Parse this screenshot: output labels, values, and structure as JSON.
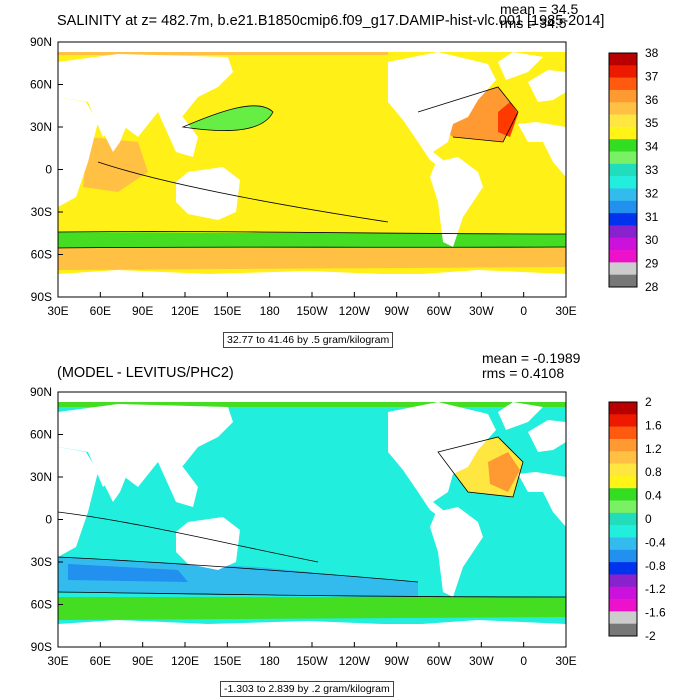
{
  "panels": [
    {
      "title": "SALINITY at z= 482.7m, b.e21.B1850cmip6.f09_g17.DAMIP-hist-vlc.001 [1985-2014]",
      "mean_label": "mean = 34.5",
      "rms_label": "rms = 34.5",
      "range_label": "32.77 to 41.46 by .5 gram/kilogram",
      "colorbar": {
        "labels": [
          "38",
          "37",
          "36",
          "35",
          "34",
          "33",
          "32",
          "31",
          "30",
          "29",
          "28"
        ],
        "colors": [
          "#b80000",
          "#ee1a00",
          "#ff5a10",
          "#ff9a33",
          "#ffc044",
          "#ffe640",
          "#fff318",
          "#33dd22",
          "#7af064",
          "#22ddbb",
          "#22eedd",
          "#33bbee",
          "#2290ee",
          "#0033ee",
          "#8822cc",
          "#cc11dd",
          "#ee11cc",
          "#cccccc",
          "#777777"
        ]
      }
    },
    {
      "title": "(MODEL - LEVITUS/PHC2)",
      "mean_label": "mean = -0.1989",
      "rms_label": "rms = 0.4108",
      "range_label": "-1.303 to 2.839 by .2 gram/kilogram",
      "colorbar": {
        "labels": [
          "2",
          "1.6",
          "1.2",
          "0.8",
          "0.4",
          "0",
          "-0.4",
          "-0.8",
          "-1.2",
          "-1.6",
          "-2"
        ],
        "colors": [
          "#b80000",
          "#ee1a00",
          "#ff5a10",
          "#ff9a33",
          "#ffc044",
          "#ffe640",
          "#fff318",
          "#33dd22",
          "#7af064",
          "#22ddbb",
          "#22eedd",
          "#33bbee",
          "#2290ee",
          "#0033ee",
          "#8822cc",
          "#cc11dd",
          "#ee11cc",
          "#cccccc",
          "#777777"
        ]
      }
    }
  ],
  "axes": {
    "x_ticks": [
      "30E",
      "60E",
      "90E",
      "120E",
      "150E",
      "180",
      "150W",
      "120W",
      "90W",
      "60W",
      "30W",
      "0",
      "30E"
    ],
    "y_ticks": [
      "90N",
      "60N",
      "30N",
      "0",
      "30S",
      "60S",
      "90S"
    ]
  },
  "chart_data": [
    {
      "type": "heatmap",
      "title": "SALINITY at z= 482.7m, b.e21.B1850cmip6.f09_g17.DAMIP-hist-vlc.001 [1985-2014]",
      "x_ticks": [
        "30E",
        "60E",
        "90E",
        "120E",
        "150E",
        "180",
        "150W",
        "120W",
        "90W",
        "60W",
        "30W",
        "0",
        "30E"
      ],
      "y_ticks": [
        "90N",
        "60N",
        "30N",
        "0",
        "30S",
        "60S",
        "90S"
      ],
      "xlim": [
        30,
        390
      ],
      "ylim": [
        -90,
        90
      ],
      "mean": 34.5,
      "rms": 34.5,
      "colorbar_levels": [
        28,
        29,
        30,
        31,
        32,
        33,
        34,
        35,
        36,
        37,
        38
      ],
      "units": "gram/kilogram"
    },
    {
      "type": "heatmap",
      "title": "(MODEL - LEVITUS/PHC2)",
      "x_ticks": [
        "30E",
        "60E",
        "90E",
        "120E",
        "150E",
        "180",
        "150W",
        "120W",
        "90W",
        "60W",
        "30W",
        "0",
        "30E"
      ],
      "y_ticks": [
        "90N",
        "60N",
        "30N",
        "0",
        "30S",
        "60S",
        "90S"
      ],
      "xlim": [
        30,
        390
      ],
      "ylim": [
        -90,
        90
      ],
      "mean": -0.1989,
      "rms": 0.4108,
      "colorbar_levels": [
        -2,
        -1.6,
        -1.2,
        -0.8,
        -0.4,
        0,
        0.4,
        0.8,
        1.2,
        1.6,
        2
      ],
      "units": "gram/kilogram"
    }
  ]
}
